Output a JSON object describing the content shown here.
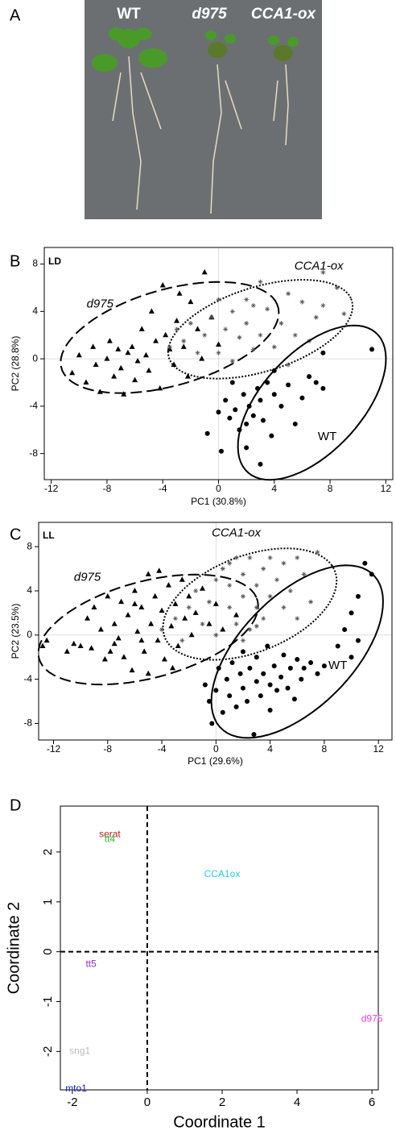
{
  "photo": {
    "panel_label": "A",
    "labels": [
      "WT",
      "d975",
      "CCA1-ox"
    ]
  },
  "chart_data": [
    {
      "type": "scatter",
      "panel_label": "B",
      "annotation": "LD",
      "xlabel": "PC1 (30.8%)",
      "ylabel": "PC2 (28.8%)",
      "xlim": [
        -12.5,
        12.5
      ],
      "ylim": [
        -10.2,
        9.4
      ],
      "xticks": [
        -12,
        -8,
        -4,
        0,
        4,
        8,
        12
      ],
      "yticks": [
        -8,
        -4,
        0,
        4,
        8
      ],
      "reference_lines": {
        "x": 0,
        "y": 0
      },
      "series": [
        {
          "name": "d975",
          "marker": "triangle",
          "color": "#000000",
          "line_style": "dashed",
          "ellipse": {
            "cx": -3.5,
            "cy": 1.8,
            "rx": 8.2,
            "ry": 4,
            "angle": 20
          },
          "x": [
            -10.5,
            -10,
            -9.5,
            -9,
            -8.8,
            -8.5,
            -8,
            -7.8,
            -7.5,
            -7.2,
            -7,
            -6.8,
            -6.5,
            -6.2,
            -6,
            -5.8,
            -5.5,
            -5.2,
            -5,
            -4.8,
            -4.5,
            -4.2,
            -4,
            -3.8,
            -3.5,
            -3.2,
            -3,
            -2.8,
            -2.5,
            -2.2,
            -2,
            -1.5,
            -1.2,
            -1,
            -0.5,
            0
          ],
          "values": [
            -1.2,
            0.3,
            -2,
            1,
            -0.5,
            -2.8,
            0,
            1.5,
            -1.5,
            0.8,
            -0.8,
            -3,
            0.5,
            1,
            -1.8,
            -0.2,
            2.5,
            0.3,
            -1,
            4,
            1.5,
            -2.5,
            6.2,
            2,
            0.8,
            -0.5,
            3.2,
            5.5,
            1,
            -1.5,
            4.8,
            2.5,
            0,
            7.3,
            3.5,
            1.2
          ]
        },
        {
          "name": "CCA1-ox",
          "marker": "asterisk",
          "color": "#555555",
          "line_style": "dotted",
          "ellipse": {
            "cx": 3,
            "cy": 2.5,
            "rx": 7,
            "ry": 3.5,
            "angle": 22
          },
          "x": [
            -3.5,
            -3,
            -2.5,
            -2,
            -1.5,
            -1,
            -0.5,
            0,
            0.5,
            1,
            1,
            1.5,
            2,
            2,
            2.5,
            3,
            3,
            3.5,
            4,
            4.5,
            5,
            5,
            5.5,
            6,
            6.5,
            7,
            7.5,
            7.5,
            8.5,
            9,
            2.5,
            0
          ],
          "values": [
            1,
            2.5,
            1.5,
            3,
            0.5,
            2,
            3.5,
            0.5,
            2.5,
            4,
            -0.2,
            1.8,
            5,
            3,
            0.8,
            6.5,
            2,
            4.2,
            1,
            3,
            5.5,
            -0.5,
            2,
            4.8,
            1.5,
            3.5,
            4.5,
            7.3,
            6,
            3.8,
            4.5,
            5
          ]
        },
        {
          "name": "WT",
          "marker": "circle",
          "color": "#000000",
          "line_style": "solid",
          "ellipse": {
            "cx": 6.7,
            "cy": -3.7,
            "rx": 7.5,
            "ry": 3.8,
            "angle": 55
          },
          "x": [
            -0.8,
            0,
            0.2,
            0.5,
            0.8,
            1,
            1.2,
            1.5,
            1.8,
            2,
            2,
            2.2,
            2.5,
            2.8,
            3,
            3,
            3.2,
            3.5,
            4,
            4,
            4.5,
            5,
            5.5,
            6,
            6.5,
            7,
            7.5,
            7.5,
            11,
            3.8
          ],
          "values": [
            -6.3,
            -4.5,
            -7.8,
            -3.5,
            -5,
            -2,
            -4.3,
            -6,
            -3,
            -5.5,
            -7.5,
            -4,
            -4.8,
            -2.5,
            -8.9,
            -3.5,
            -5.2,
            -2,
            -3,
            -1,
            -4,
            -2.2,
            -5.5,
            -3.3,
            -1.5,
            -2,
            -2.5,
            0.5,
            0.8,
            -6.5
          ]
        }
      ]
    },
    {
      "type": "scatter",
      "panel_label": "C",
      "annotation": "LL",
      "xlabel": "PC1 (29.6%)",
      "ylabel": "PC2 (23.5%)",
      "xlim": [
        -13.1,
        13
      ],
      "ylim": [
        -9.5,
        10.2
      ],
      "xticks": [
        -12,
        -8,
        -4,
        0,
        4,
        8,
        12
      ],
      "yticks": [
        -8,
        -4,
        0,
        4,
        8
      ],
      "reference_lines": {
        "x": 0,
        "y": 0
      },
      "series": [
        {
          "name": "d975",
          "marker": "triangle",
          "color": "#000000",
          "line_style": "dashed",
          "ellipse": {
            "cx": -5,
            "cy": 0.5,
            "rx": 8.5,
            "ry": 4.3,
            "angle": 20
          },
          "x": [
            -12.8,
            -12.5,
            -11,
            -10.5,
            -10,
            -9.5,
            -9.2,
            -9,
            -8.5,
            -8.2,
            -8,
            -7.8,
            -7.5,
            -7.2,
            -7,
            -6.8,
            -6.5,
            -6.2,
            -6,
            -5.8,
            -5.5,
            -5.3,
            -5,
            -5,
            -4.8,
            -4.5,
            -4.3,
            -4,
            -3.8,
            -3.5,
            -3.3,
            -3,
            -2.8,
            -2.5,
            -2.3,
            -2,
            -1.8,
            -1.5,
            -1,
            -0.5,
            0,
            0.5,
            1.5,
            -4.2,
            -3.2,
            -6,
            -7.5,
            -5.5
          ],
          "values": [
            -1,
            -0.5,
            -1.5,
            -0.8,
            -1,
            1.5,
            -1.2,
            2.5,
            0.5,
            -2.2,
            3.5,
            -1.5,
            1,
            -0.3,
            3,
            -2,
            1.8,
            -3.2,
            4,
            0.3,
            2.5,
            -1.5,
            5.5,
            -3.5,
            1,
            3.5,
            -0.5,
            2.2,
            -2.2,
            4.5,
            0.8,
            2.8,
            -1,
            5,
            1.5,
            3.5,
            0,
            2,
            4.2,
            1,
            2.8,
            0.5,
            1.8,
            5.8,
            -3,
            2.8,
            -0.8,
            -0.5
          ]
        },
        {
          "name": "CCA1-ox",
          "marker": "asterisk",
          "color": "#555555",
          "line_style": "dotted",
          "ellipse": {
            "cx": 2.5,
            "cy": 2.8,
            "rx": 7,
            "ry": 4.2,
            "angle": 30
          },
          "x": [
            -4,
            -3,
            -2.5,
            -2,
            -1.5,
            -1,
            -0.5,
            0,
            0,
            0.5,
            1,
            1,
            1.5,
            1.5,
            2,
            2,
            2.5,
            2.5,
            3,
            3,
            3.5,
            3.5,
            4,
            4,
            4.5,
            5,
            5,
            5.5,
            6,
            6,
            6.5,
            7,
            7.5,
            2,
            3,
            1
          ],
          "values": [
            0.5,
            1.5,
            -0.5,
            2.5,
            4,
            1,
            3,
            5,
            0,
            6,
            2.5,
            4.5,
            7,
            1,
            3.5,
            5.5,
            0.5,
            7,
            2.5,
            4.5,
            6,
            1.5,
            3.5,
            7,
            5,
            2.5,
            6.5,
            4,
            7,
            1.5,
            5.5,
            3,
            7.5,
            -0.5,
            0.8,
            6.5
          ]
        },
        {
          "name": "WT",
          "marker": "circle",
          "color": "#000000",
          "line_style": "solid",
          "ellipse": {
            "cx": 6,
            "cy": -1.5,
            "rx": 9,
            "ry": 4.5,
            "angle": 55
          },
          "x": [
            -0.8,
            -0.5,
            -0.3,
            0,
            0.2,
            0.5,
            0.8,
            1,
            1.2,
            1.5,
            1.8,
            2,
            2,
            2.3,
            2.5,
            2.8,
            3,
            3,
            3.3,
            3.5,
            3.8,
            4,
            4,
            4.3,
            4.5,
            4.8,
            5,
            5.3,
            5.5,
            5.8,
            6,
            6.3,
            6.5,
            7,
            7.5,
            8,
            9,
            9.5,
            10,
            10,
            10.5,
            11,
            11.5,
            10.5
          ],
          "values": [
            -4.5,
            -6,
            -8,
            -5,
            -3,
            -7,
            -4,
            -5.5,
            -2.5,
            -6.5,
            -3.5,
            -4.8,
            -1.5,
            -6,
            -3,
            -9,
            -4.2,
            -2,
            -5.5,
            -3.5,
            -1,
            -4.5,
            -6.8,
            -2.8,
            -5,
            -3.8,
            -1.8,
            -4.8,
            -3,
            -5.8,
            -2.2,
            -4,
            -3,
            -2.5,
            -3.5,
            -2.8,
            -1,
            0.5,
            -2,
            2,
            3.5,
            6.5,
            5.5,
            -0.5
          ]
        }
      ]
    },
    {
      "type": "text-scatter",
      "panel_label": "D",
      "xlabel": "Coordinate 1",
      "ylabel": "Coordinate 2",
      "xlim": [
        -2.32,
        6.17
      ],
      "ylim": [
        -2.77,
        2.92
      ],
      "xticks": [
        -2,
        0,
        2,
        4,
        6
      ],
      "yticks": [
        -2,
        -1,
        0,
        1,
        2
      ],
      "reference_lines": {
        "x": 0,
        "y": 0
      },
      "labels": [
        "serat",
        "tt4",
        "CCA1ox",
        "tt5",
        "d975",
        "sng1",
        "mto1"
      ],
      "x": [
        -1.0,
        -1.0,
        2.0,
        -1.5,
        6.0,
        -1.8,
        -1.9
      ],
      "values": [
        2.35,
        2.25,
        1.55,
        -0.25,
        -1.35,
        -2.0,
        -2.75
      ],
      "colors": [
        "#b22222",
        "#22bb22",
        "#22d3e0",
        "#8b2be2",
        "#e040e0",
        "#bbbbbb",
        "#1a1acc"
      ]
    }
  ]
}
